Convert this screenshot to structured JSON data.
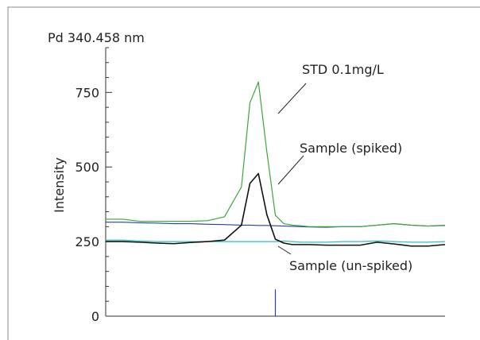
{
  "chart_data": {
    "type": "line",
    "title": "Pd 340.458 nm",
    "xlabel": "",
    "ylabel": "Intensity",
    "ylim": [
      0,
      900
    ],
    "yticks": [
      0,
      250,
      500,
      750
    ],
    "ytick_labels": [
      "0",
      "250",
      "500",
      "750"
    ],
    "xlim": [
      0,
      40
    ],
    "grid": false,
    "legend": "none (series labelled by callouts)",
    "x": [
      0,
      2,
      4,
      6,
      8,
      10,
      12,
      14,
      16,
      17,
      18,
      19,
      20,
      21,
      22,
      23,
      24,
      26,
      28,
      30,
      32,
      34,
      36,
      38,
      40
    ],
    "series": [
      {
        "name": "STD 0.1mg/L",
        "color": "#3aa63a",
        "values": [
          325,
          325,
          318,
          318,
          318,
          318,
          320,
          333,
          433,
          715,
          785,
          550,
          338,
          310,
          305,
          303,
          300,
          300,
          300,
          300,
          305,
          310,
          305,
          302,
          305
        ]
      },
      {
        "name": "Sample (spiked)",
        "color": "#111111",
        "values": [
          250,
          250,
          248,
          245,
          243,
          247,
          250,
          255,
          305,
          445,
          478,
          340,
          258,
          245,
          240,
          240,
          240,
          238,
          238,
          238,
          248,
          242,
          235,
          235,
          240
        ]
      },
      {
        "name": "Sample (un-spiked)",
        "color": "#30c0c0",
        "values": [
          255,
          255,
          252,
          250,
          250,
          250,
          250,
          250,
          250,
          250,
          250,
          250,
          250,
          252,
          250,
          248,
          248,
          248,
          250,
          250,
          252,
          250,
          248,
          248,
          250
        ]
      },
      {
        "name": "",
        "color": "#2a3fa0",
        "values": [
          315,
          315,
          313,
          312,
          310,
          310,
          308,
          307,
          305,
          305,
          304,
          304,
          303,
          302,
          301,
          300,
          299,
          298,
          300,
          300,
          305,
          310,
          305,
          302,
          304
        ]
      }
    ],
    "marker": {
      "x": 20,
      "y": 90,
      "color": "#2a3fa0"
    },
    "annotations": [
      {
        "text": "STD 0.1mg/L",
        "series": "STD 0.1mg/L"
      },
      {
        "text": "Sample (spiked)",
        "series": "Sample (spiked)"
      },
      {
        "text": "Sample (un-spiked)",
        "series": "Sample (un-spiked)"
      }
    ]
  }
}
